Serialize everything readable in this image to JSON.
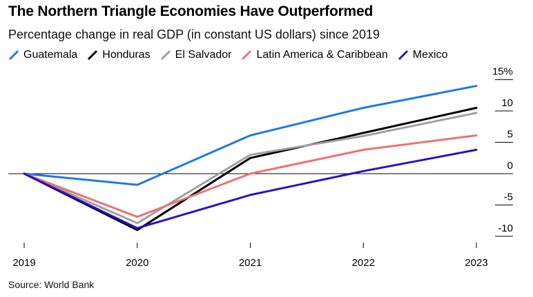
{
  "header": {
    "title": "The Northern Triangle Economies Have Outperformed",
    "subtitle": "Percentage change in real GDP (in constant US dollars) since 2019"
  },
  "source": "Source: World Bank",
  "chart_data": {
    "type": "line",
    "x": [
      "2019",
      "2020",
      "2021",
      "2022",
      "2023"
    ],
    "y_ticks": [
      "15%",
      "10",
      "5",
      "0",
      "-5",
      "-10"
    ],
    "y_tick_values": [
      15,
      10,
      5,
      0,
      -5,
      -10
    ],
    "ylim": [
      -11,
      16
    ],
    "series": [
      {
        "name": "Guatemala",
        "color": "#1f77e8",
        "values": [
          0,
          -1.8,
          6.1,
          10.5,
          14.0
        ]
      },
      {
        "name": "Honduras",
        "color": "#000000",
        "values": [
          0,
          -9.0,
          2.5,
          6.5,
          10.5
        ]
      },
      {
        "name": "El Salvador",
        "color": "#a0a0a0",
        "values": [
          0,
          -7.9,
          3.0,
          6.0,
          9.7
        ]
      },
      {
        "name": "Latin America & Caribbean",
        "color": "#f07070",
        "values": [
          0,
          -6.9,
          0,
          3.8,
          6.1
        ]
      },
      {
        "name": "Mexico",
        "color": "#2b0fc8",
        "values": [
          0,
          -8.7,
          -3.4,
          0.4,
          3.8
        ]
      }
    ]
  }
}
